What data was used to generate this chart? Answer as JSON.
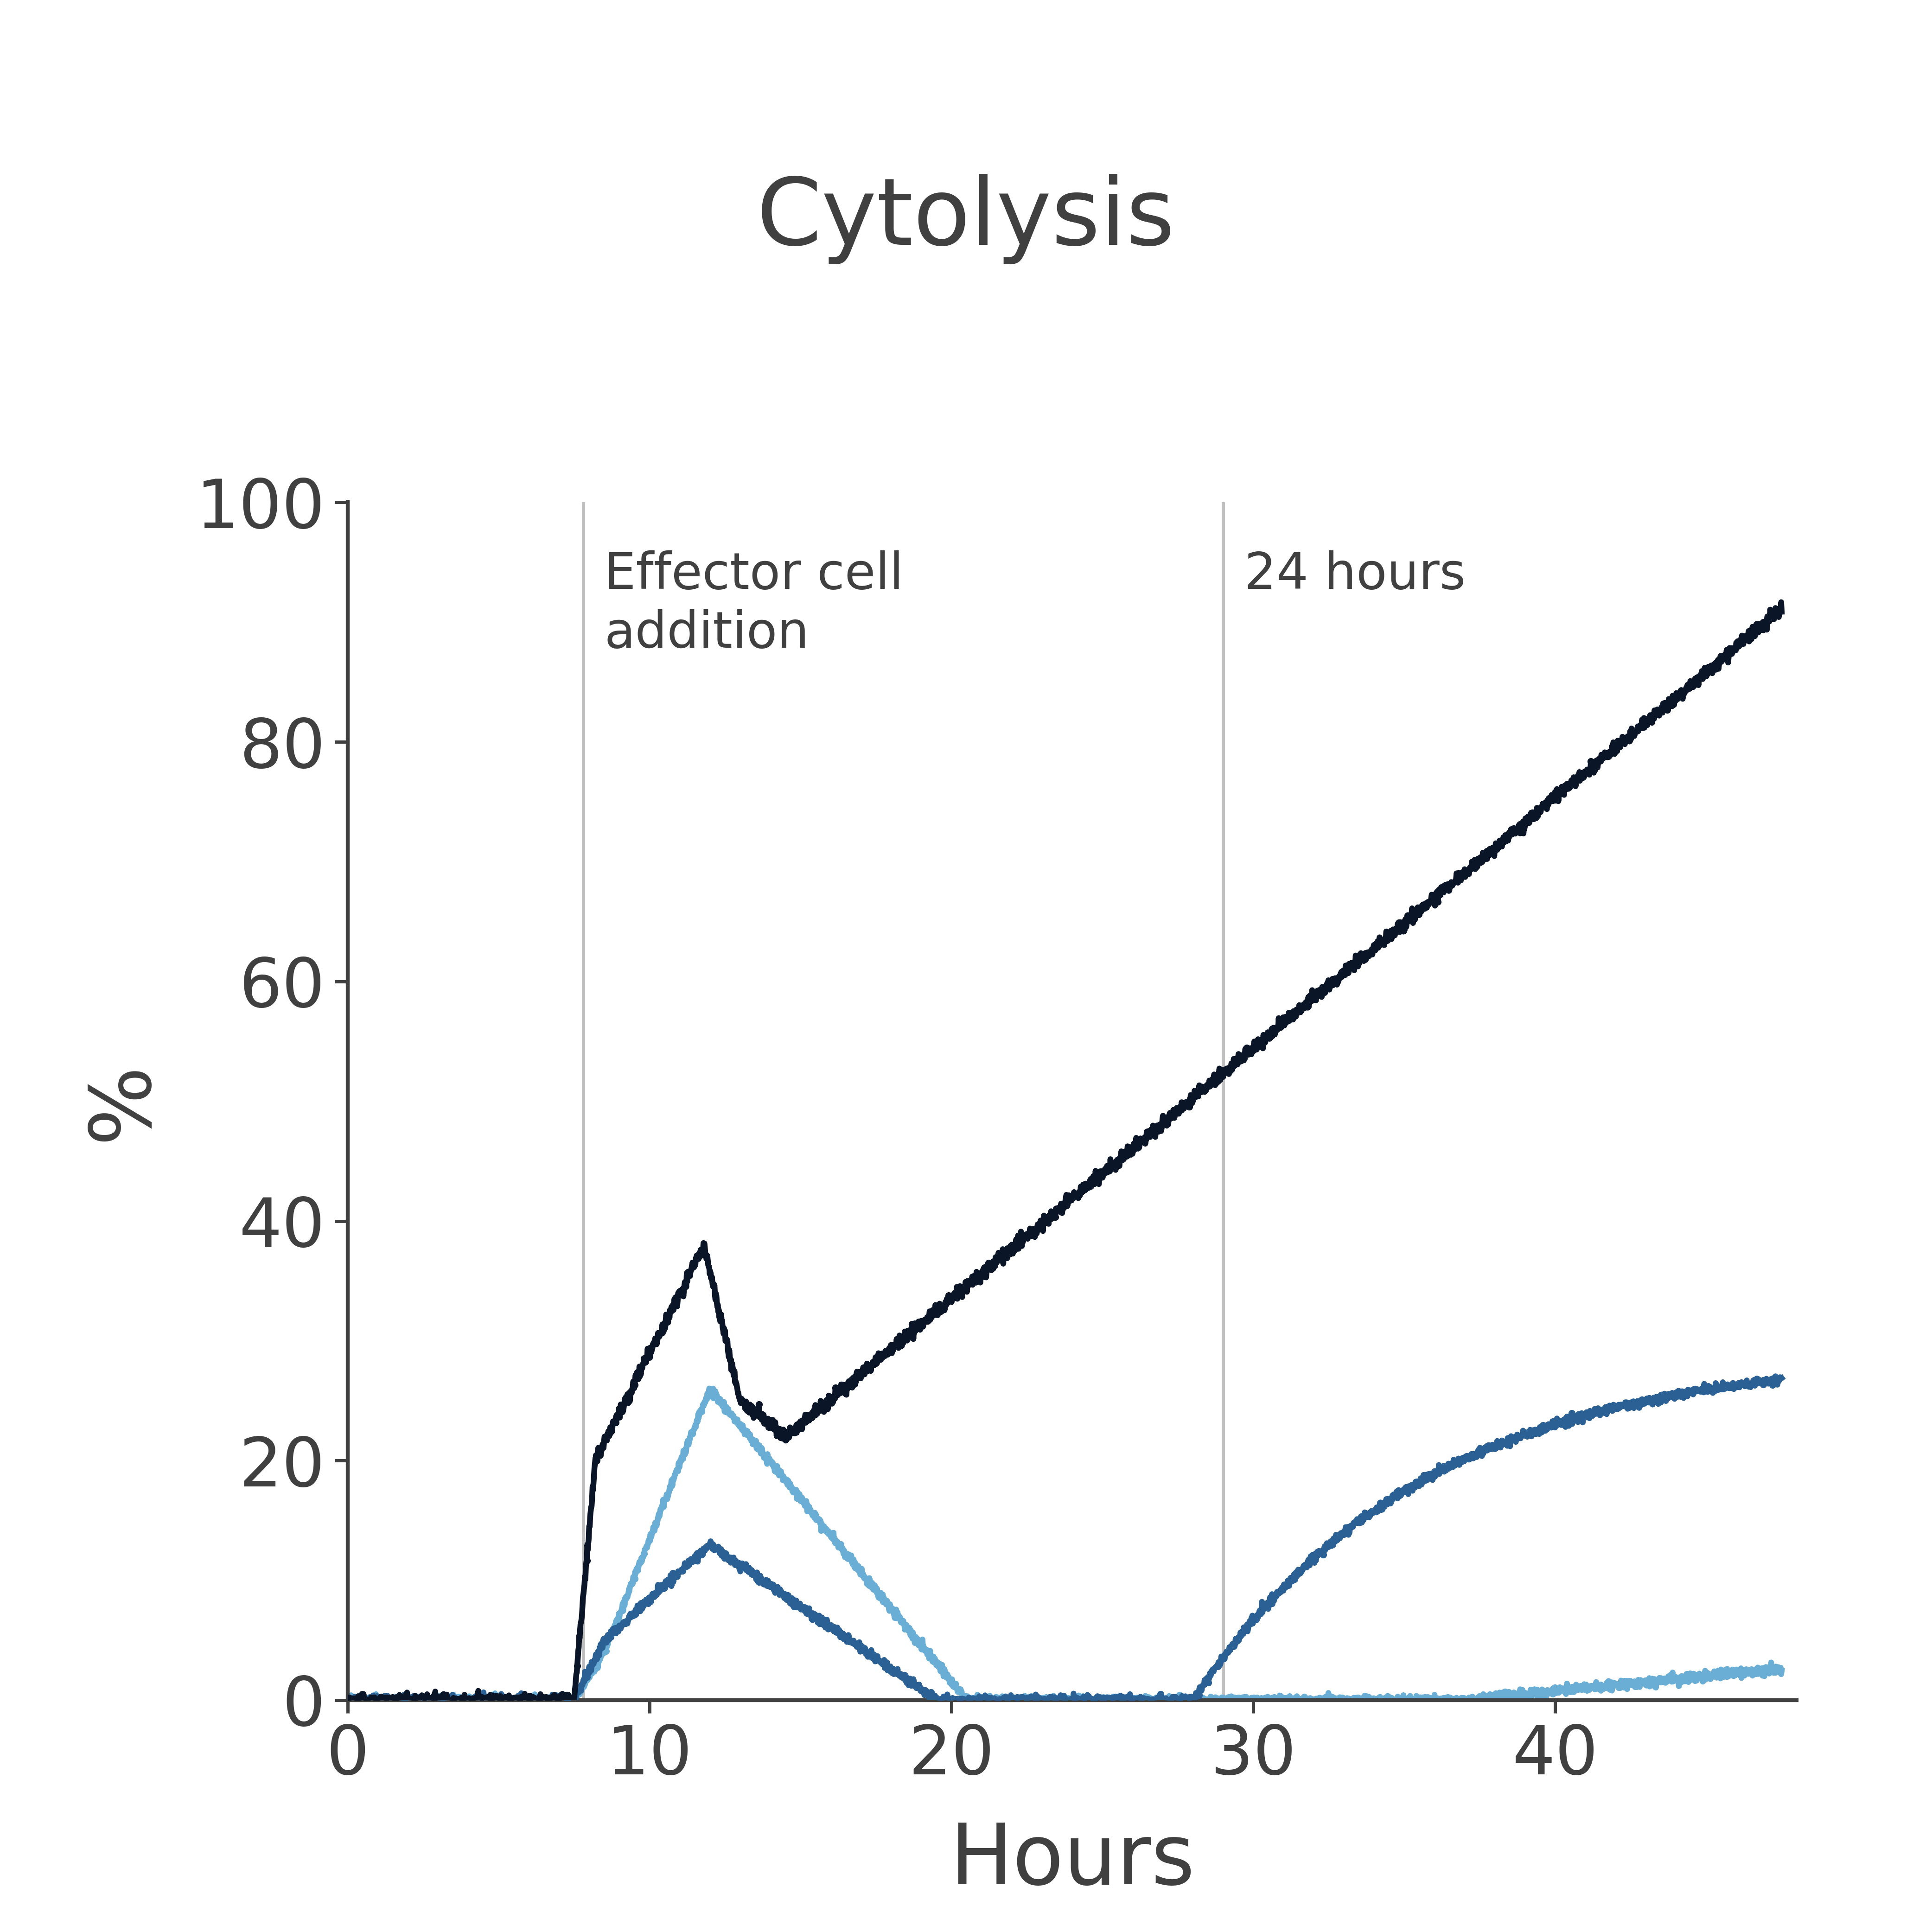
{
  "title": "Cytolysis",
  "xlabel": "Hours",
  "ylabel": "%",
  "xlim": [
    0,
    48
  ],
  "ylim": [
    0,
    100
  ],
  "xticks": [
    0,
    10,
    20,
    30,
    40
  ],
  "yticks": [
    0,
    20,
    40,
    60,
    80,
    100
  ],
  "vline1_x": 7.8,
  "vline1_label": "Effector cell\naddition",
  "vline2_x": 29.0,
  "vline2_label": "24 hours",
  "vline_color": "#c0c0c0",
  "line_dark_color": "#0a1628",
  "line_mid_color": "#2b6095",
  "line_light_color": "#6aaed6",
  "background_color": "#ffffff",
  "axis_color": "#404040",
  "title_fontsize": 145,
  "label_fontsize": 130,
  "tick_fontsize": 105,
  "annotation_fontsize": 78
}
